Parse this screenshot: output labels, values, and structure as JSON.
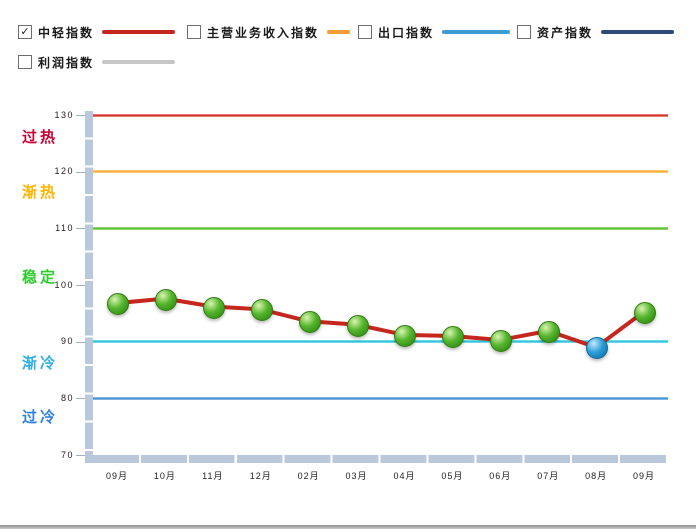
{
  "legend": {
    "check_icon": "✓",
    "items": [
      {
        "label": "中轻指数",
        "checked": true,
        "color": "#C5271E"
      },
      {
        "label": "主营业务收入指数",
        "checked": false,
        "color": "#F59B33"
      },
      {
        "label": "出口指数",
        "checked": false,
        "color": "#3E9CD4"
      },
      {
        "label": "资产指数",
        "checked": false,
        "color": "#2D4A77"
      },
      {
        "label": "利润指数",
        "checked": false,
        "color": "#C6C6C6"
      }
    ]
  },
  "chart_data": {
    "type": "line",
    "title": "",
    "categories": [
      "09月",
      "10月",
      "11月",
      "12月",
      "02月",
      "03月",
      "04月",
      "05月",
      "06月",
      "07月",
      "08月",
      "09月"
    ],
    "series": [
      {
        "name": "中轻指数",
        "color": "#C5271E",
        "values": [
          96.8,
          97.6,
          96.2,
          95.7,
          93.6,
          93.0,
          91.2,
          91.0,
          90.3,
          91.9,
          89.0,
          95.3
        ],
        "point_colors": [
          "green",
          "green",
          "green",
          "green",
          "green",
          "green",
          "green",
          "green",
          "green",
          "green",
          "blue",
          "green"
        ]
      }
    ],
    "ylim": [
      70,
      130
    ],
    "yticks": [
      130,
      120,
      110,
      100,
      90,
      80,
      70
    ],
    "grid": false,
    "legend_position": "top",
    "threshold_lines": [
      {
        "value": 130,
        "core": "#D43B30",
        "glow": "#F2ACA6"
      },
      {
        "value": 120,
        "core": "#FBAE3B",
        "glow": "#FDDDA5"
      },
      {
        "value": 110,
        "core": "#5FBE3C",
        "glow": "#BCE8A0"
      },
      {
        "value": 90,
        "core": "#2FC5DD",
        "glow": "#A8E9F2"
      },
      {
        "value": 80,
        "core": "#4E93D2",
        "glow": "#AFD2ED"
      }
    ],
    "zone_labels": [
      {
        "text": "过热",
        "color": "#CC0033",
        "value": 126.0
      },
      {
        "text": "渐热",
        "color": "#FFB400",
        "value": 116.2
      },
      {
        "text": "稳定",
        "color": "#2FCC2F",
        "value": 101.3
      },
      {
        "text": "渐冷",
        "color": "#2FAEE8",
        "value": 86.0
      },
      {
        "text": "过冷",
        "color": "#2F7FE0",
        "value": 76.6
      }
    ],
    "marker_styles": {
      "green": {
        "light": "#D9F4B1",
        "base": "#56B52E",
        "dark": "#2F8B12",
        "border": "#2E7D0E"
      },
      "blue": {
        "light": "#C4E9FA",
        "base": "#2E9FD9",
        "dark": "#1173A8",
        "border": "#106897"
      }
    }
  }
}
